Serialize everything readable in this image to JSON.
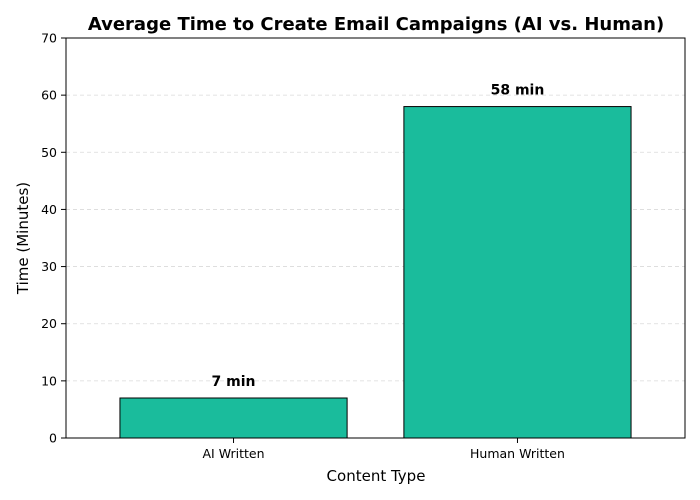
{
  "chart_data": {
    "type": "bar",
    "title": "Average Time to Create Email Campaigns (AI vs. Human)",
    "xlabel": "Content Type",
    "ylabel": "Time (Minutes)",
    "categories": [
      "AI Written",
      "Human Written"
    ],
    "values": [
      7,
      58
    ],
    "data_labels": [
      "7 min",
      "58 min"
    ],
    "ylim": [
      0,
      70
    ],
    "yticks": [
      0,
      10,
      20,
      30,
      40,
      50,
      60,
      70
    ],
    "ytick_labels": [
      "0",
      "10",
      "20",
      "30",
      "40",
      "50",
      "60",
      "70"
    ],
    "grid": "horizontal-dashed",
    "bar_color": "#1abc9c",
    "bar_edge_color": "#000000"
  }
}
